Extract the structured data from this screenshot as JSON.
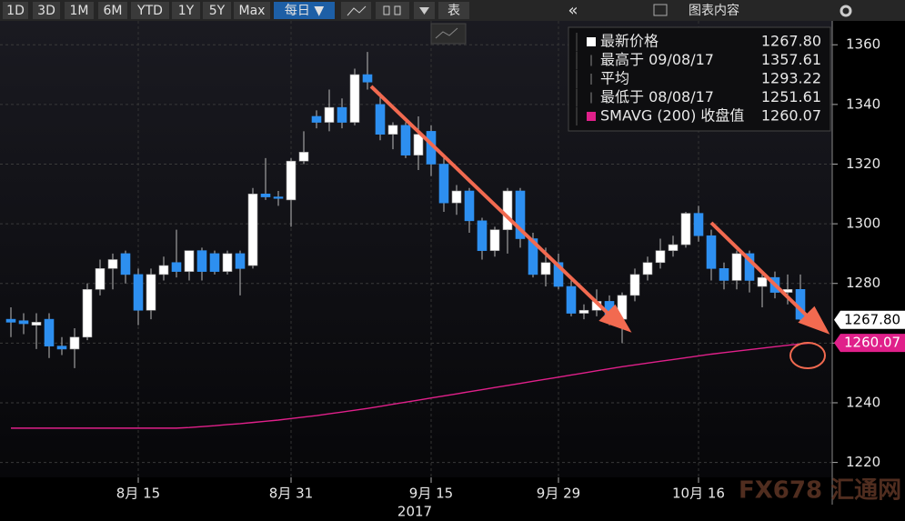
{
  "toolbar": {
    "buttons": [
      "1D",
      "3D",
      "1M",
      "6M",
      "YTD",
      "1Y",
      "5Y",
      "Max",
      "每日 ▼",
      "表",
      "«",
      "图表内容"
    ]
  },
  "watermark": "FX678 汇通网",
  "chart_data": {
    "type": "candlestick",
    "categories": [
      null,
      null,
      null,
      null,
      null,
      null,
      null,
      null,
      null,
      null,
      "8月 15",
      null,
      null,
      null,
      null,
      null,
      null,
      null,
      null,
      null,
      null,
      null,
      "8月 31",
      null,
      null,
      null,
      null,
      null,
      null,
      null,
      null,
      null,
      null,
      "9月 15",
      null,
      null,
      null,
      null,
      null,
      null,
      null,
      null,
      null,
      "9月 29",
      null,
      null,
      null,
      null,
      null,
      null,
      null,
      null,
      null,
      null,
      "10月 16",
      null,
      null,
      null,
      null,
      null,
      null,
      null,
      null,
      null
    ],
    "year_label": "2017",
    "up_color": "#ffffff",
    "down_color": "#2d8ff0",
    "open": [
      1268,
      1267.5,
      1266,
      1268,
      1259,
      1258,
      1262,
      1278,
      1285,
      1290,
      1283,
      1271,
      1283,
      1287,
      1284,
      1291,
      1290,
      1284,
      1290,
      1286,
      1310,
      1309,
      1308,
      1321,
      1336,
      1334,
      1339,
      1334,
      1350,
      1340,
      1330,
      1333,
      1323,
      1331,
      1320,
      1307,
      1311,
      1301,
      1291,
      1298,
      1311,
      1295,
      1283,
      1287,
      1279,
      1270,
      1271,
      1274,
      1268,
      1276,
      1283,
      1287,
      1291,
      1293,
      1303.5,
      1296,
      1285,
      1281,
      1290,
      1279,
      1282,
      1277,
      1278,
      1267
    ],
    "high": [
      1272,
      1270,
      1270,
      1270,
      1262,
      1265,
      1280,
      1288,
      1290,
      1291,
      1285,
      1285,
      1289,
      1298,
      1291,
      1292,
      1291,
      1291,
      1291,
      1312,
      1322,
      1311,
      1322,
      1331,
      1338,
      1345,
      1342,
      1352,
      1357.61,
      1344,
      1334,
      1334,
      1336,
      1333,
      1322,
      1313,
      1312,
      1302,
      1299,
      1312,
      1312,
      1297,
      1292,
      1290,
      1281,
      1273,
      1278,
      1276,
      1277,
      1285,
      1289,
      1295,
      1296,
      1304,
      1306,
      1298,
      1287,
      1291,
      1291,
      1283,
      1284,
      1283,
      1283,
      1269
    ],
    "low": [
      1262,
      1263,
      1258,
      1255,
      1256,
      1251.61,
      1261,
      1276,
      1278,
      1280,
      1266,
      1268,
      1281,
      1282,
      1281,
      1281,
      1283,
      1283,
      1276,
      1285,
      1308,
      1306,
      1299,
      1320,
      1332,
      1331,
      1332,
      1333,
      1345,
      1328,
      1325,
      1322,
      1318,
      1316,
      1304,
      1303,
      1297,
      1288,
      1289,
      1290,
      1292,
      1282,
      1279,
      1278,
      1269,
      1268,
      1269,
      1266,
      1260,
      1274,
      1281,
      1285,
      1289,
      1292,
      1294,
      1281,
      1278,
      1278,
      1277,
      1272,
      1275,
      1273,
      1267,
      1266
    ],
    "close": [
      1267,
      1266.5,
      1267,
      1259,
      1258,
      1262,
      1278,
      1285,
      1288,
      1283,
      1271,
      1283,
      1286,
      1284,
      1291,
      1284,
      1284,
      1290,
      1285,
      1310,
      1309,
      1308.5,
      1321,
      1324,
      1334,
      1339,
      1334,
      1350,
      1347.5,
      1330,
      1333,
      1323,
      1330,
      1320,
      1307,
      1311,
      1301,
      1291,
      1298,
      1311,
      1295,
      1283,
      1287,
      1279,
      1270,
      1271,
      1274,
      1268,
      1276,
      1283,
      1287,
      1291,
      1293,
      1303.5,
      1296,
      1285,
      1281,
      1290,
      1281,
      1282,
      1277,
      1278,
      1268,
      1267.8
    ],
    "sma": {
      "name": "SMAVG (200) 收盘值",
      "color": "#e0208a",
      "values": [
        1231.5,
        1231.5,
        1231.5,
        1231.5,
        1231.5,
        1231.5,
        1231.5,
        1231.5,
        1231.5,
        1231.5,
        1231.5,
        1231.5,
        1231.5,
        1231.5,
        1231.7,
        1232,
        1232.3,
        1232.7,
        1233,
        1233.4,
        1233.8,
        1234.2,
        1234.7,
        1235.2,
        1235.7,
        1236.3,
        1236.9,
        1237.5,
        1238.1,
        1238.8,
        1239.5,
        1240.2,
        1240.9,
        1241.6,
        1242.3,
        1243,
        1243.7,
        1244.4,
        1245.1,
        1245.8,
        1246.5,
        1247.2,
        1247.9,
        1248.6,
        1249.3,
        1250,
        1250.7,
        1251.4,
        1252.1,
        1252.7,
        1253.3,
        1253.9,
        1254.5,
        1255.1,
        1255.7,
        1256.3,
        1256.8,
        1257.3,
        1257.8,
        1258.3,
        1258.8,
        1259.3,
        1259.7,
        1260.07
      ]
    },
    "legend": [
      {
        "label": "最新价格",
        "value": 1267.8,
        "value_label": "1267.80"
      },
      {
        "label": "最高于 09/08/17",
        "value": 1357.61
      },
      {
        "label": "平均",
        "value": 1293.22
      },
      {
        "label": "最低于 08/08/17",
        "value": 1251.61
      },
      {
        "label": "SMAVG (200) 收盘值",
        "value": 1260.07
      }
    ],
    "ylim": [
      1215,
      1368
    ],
    "yticks": [
      1220,
      1240,
      1260,
      1280,
      1300,
      1320,
      1340,
      1360
    ],
    "grid": true
  }
}
